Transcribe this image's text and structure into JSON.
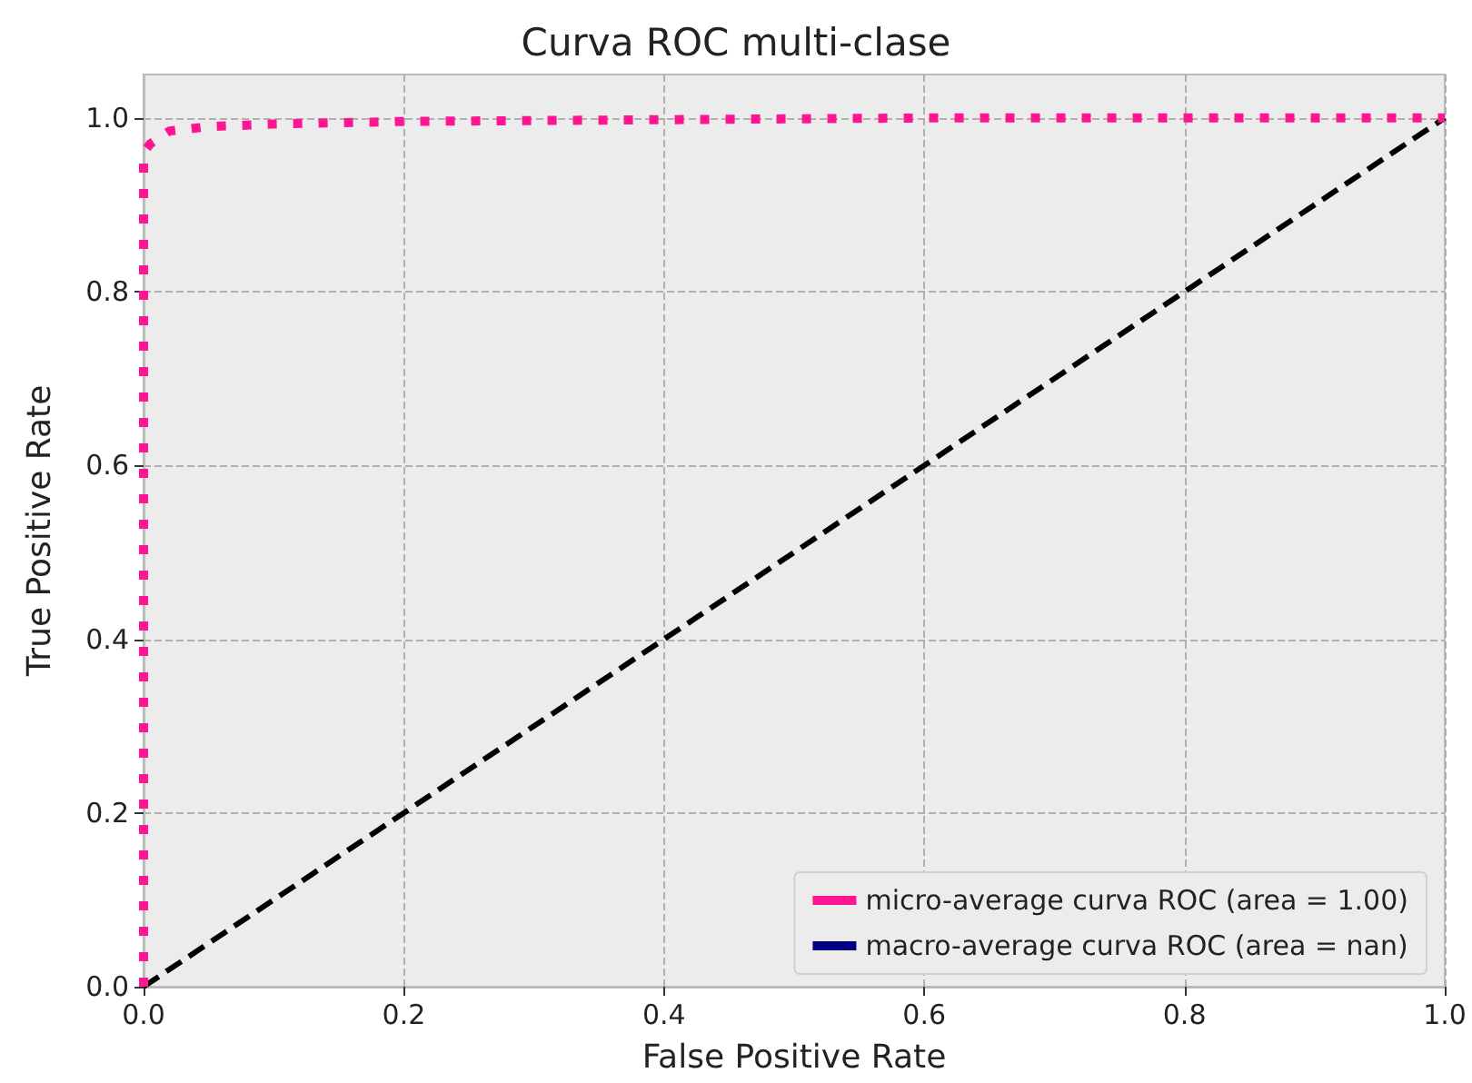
{
  "chart_data": {
    "type": "line",
    "title": "Curva ROC multi-clase",
    "xlabel": "False Positive Rate",
    "ylabel": "True Positive Rate",
    "xlim": [
      0,
      1
    ],
    "ylim": [
      0,
      1.05
    ],
    "xticks": [
      {
        "value": 0,
        "label": "0.0"
      },
      {
        "value": 0.2,
        "label": "0.2"
      },
      {
        "value": 0.4,
        "label": "0.4"
      },
      {
        "value": 0.6,
        "label": "0.6"
      },
      {
        "value": 0.8,
        "label": "0.8"
      },
      {
        "value": 1,
        "label": "1.0"
      }
    ],
    "yticks": [
      {
        "value": 0,
        "label": "0.0"
      },
      {
        "value": 0.2,
        "label": "0.2"
      },
      {
        "value": 0.4,
        "label": "0.4"
      },
      {
        "value": 0.6,
        "label": "0.6"
      },
      {
        "value": 0.8,
        "label": "0.8"
      },
      {
        "value": 1,
        "label": "1.0"
      }
    ],
    "grid": true,
    "legend": "bottom right",
    "marker": "none",
    "series": [
      {
        "name": "micro-average curva ROC (area = 1.00)",
        "color": "#ff1493",
        "line_style": "dotted",
        "x": [
          0,
          0,
          0.005,
          0.02,
          0.05,
          0.1,
          0.2,
          0.4,
          0.6,
          1
        ],
        "values": [
          0,
          0.96,
          0.97,
          0.985,
          0.99,
          0.993,
          0.996,
          0.998,
          1,
          1
        ]
      },
      {
        "name": "macro-average curva ROC (area = nan)",
        "color": "#000080",
        "line_style": "dotted"
      },
      {
        "color": "#000000",
        "line_style": "dashed",
        "x": [
          0,
          1
        ],
        "values": [
          0,
          1
        ]
      }
    ]
  }
}
